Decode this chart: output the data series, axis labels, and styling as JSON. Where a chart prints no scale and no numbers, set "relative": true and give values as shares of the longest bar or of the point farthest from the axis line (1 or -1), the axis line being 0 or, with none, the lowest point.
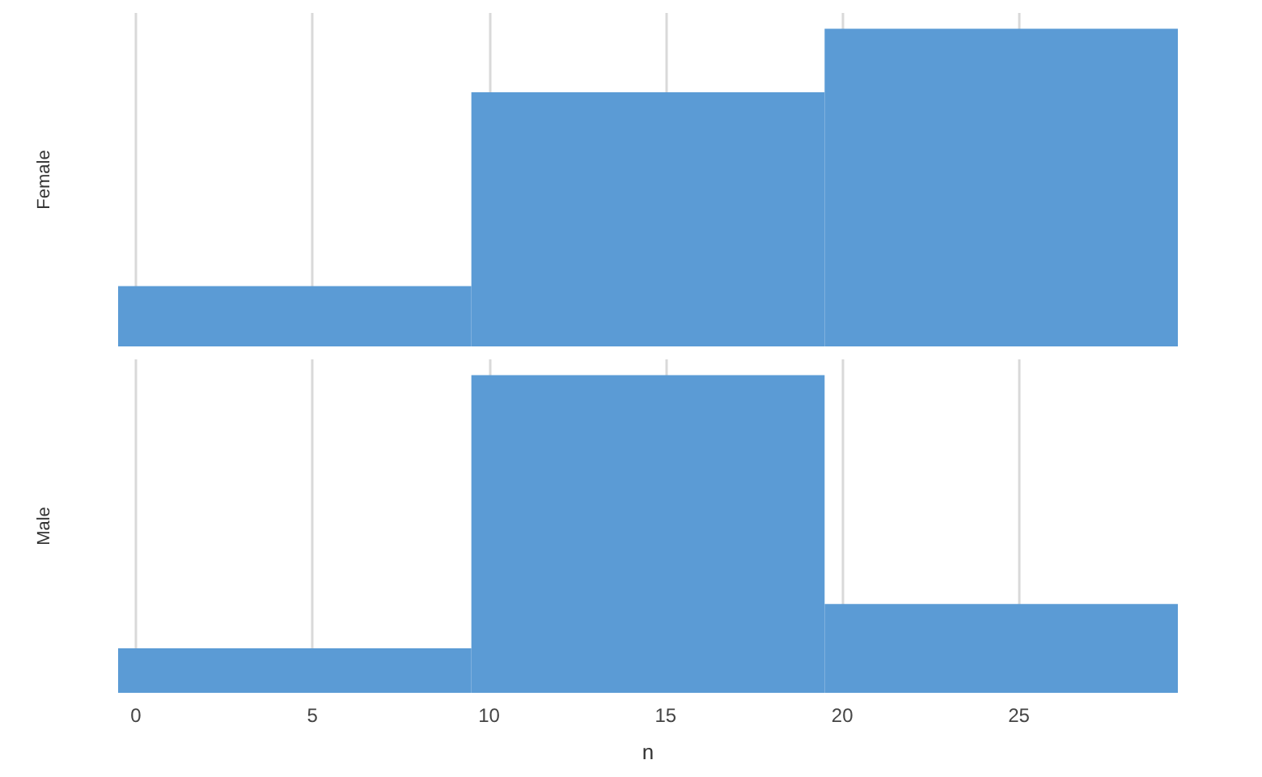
{
  "chart_data": [
    {
      "type": "bar",
      "ylabel": "Female",
      "x": [
        4.5,
        14.5,
        24.5
      ],
      "values": [
        0.19,
        0.8,
        1
      ],
      "color": "#5b9bd5",
      "relative": true,
      "xlim": [
        -0.5,
        29.5
      ],
      "xticks": [
        0,
        5,
        10,
        15,
        20,
        25
      ],
      "grid": "x",
      "tick_labels": false
    },
    {
      "type": "bar",
      "ylabel": "Male",
      "xlabel": "n",
      "x": [
        4.5,
        14.5,
        24.5
      ],
      "values": [
        0.14,
        1,
        0.28
      ],
      "color": "#5b9bd5",
      "relative": true,
      "xlim": [
        -0.5,
        29.5
      ],
      "xticks": [
        0,
        5,
        10,
        15,
        20,
        25
      ],
      "grid": "x",
      "tick_labels": "x"
    }
  ]
}
